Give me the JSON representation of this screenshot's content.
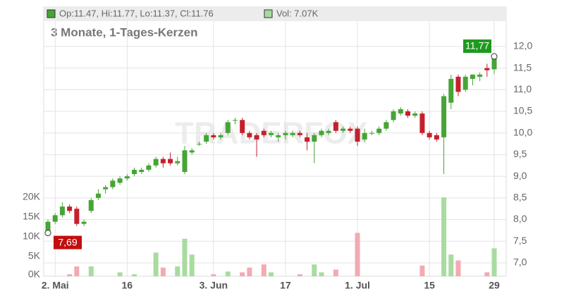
{
  "chart_data": {
    "type": "candlestick",
    "title": "3 Monate, 1-Tages-Kerzen",
    "legend": {
      "ohlc": "Op:11.47, Hi:11.77, Lo:11.37, Cl:11.76",
      "volume": "Vol: 7.07K"
    },
    "watermark": "TRADERFOX",
    "categories": [
      null,
      "2. Mai",
      null,
      null,
      null,
      null,
      null,
      null,
      null,
      null,
      null,
      "16",
      null,
      null,
      null,
      null,
      null,
      null,
      null,
      null,
      null,
      null,
      null,
      "3. Jun",
      null,
      null,
      null,
      null,
      null,
      null,
      null,
      null,
      null,
      "17",
      null,
      null,
      null,
      null,
      null,
      null,
      null,
      null,
      null,
      "1. Jul",
      null,
      null,
      null,
      null,
      null,
      null,
      null,
      null,
      null,
      "15",
      null,
      null,
      null,
      null,
      null,
      null,
      null,
      null,
      "29"
    ],
    "open": [
      7.72,
      7.95,
      8.1,
      8.3,
      8.25,
      7.9,
      8.2,
      8.5,
      8.7,
      8.75,
      8.85,
      8.95,
      9.05,
      9.1,
      9.15,
      9.25,
      9.4,
      9.4,
      9.3,
      9.1,
      9.55,
      9.75,
      9.8,
      9.95,
      9.9,
      10.0,
      10.3,
      10.3,
      10.0,
      9.95,
      10.05,
      9.95,
      9.9,
      9.95,
      9.95,
      10.0,
      9.9,
      9.8,
      9.95,
      10.0,
      10.25,
      10.05,
      10.1,
      10.1,
      9.85,
      10.0,
      10.0,
      10.1,
      10.3,
      10.45,
      10.5,
      10.4,
      10.45,
      10.0,
      9.95,
      9.9,
      10.7,
      11.3,
      11.0,
      11.25,
      11.3,
      11.5,
      11.47
    ],
    "high": [
      8.0,
      8.15,
      8.4,
      8.35,
      8.3,
      8.0,
      8.5,
      8.7,
      8.8,
      8.95,
      9.0,
      9.05,
      9.2,
      9.2,
      9.3,
      9.45,
      9.45,
      9.55,
      9.45,
      9.7,
      9.65,
      9.8,
      10.0,
      10.0,
      10.0,
      10.3,
      10.35,
      10.35,
      10.05,
      10.0,
      10.1,
      10.05,
      10.0,
      10.05,
      10.05,
      10.05,
      10.0,
      10.0,
      10.1,
      10.1,
      10.3,
      10.15,
      10.15,
      10.15,
      10.1,
      10.05,
      10.15,
      10.3,
      10.55,
      10.6,
      10.55,
      10.5,
      10.5,
      10.05,
      10.0,
      10.9,
      11.35,
      11.35,
      11.35,
      11.35,
      11.4,
      11.6,
      11.77
    ],
    "low": [
      7.69,
      7.9,
      8.05,
      8.15,
      7.85,
      7.85,
      8.15,
      8.45,
      8.6,
      8.7,
      8.8,
      8.9,
      9.0,
      9.05,
      9.1,
      9.2,
      9.2,
      9.25,
      9.25,
      9.05,
      9.5,
      9.7,
      9.75,
      9.85,
      9.85,
      9.95,
      10.2,
      9.95,
      9.85,
      9.45,
      9.9,
      9.9,
      9.8,
      9.85,
      9.9,
      9.9,
      9.6,
      9.3,
      9.9,
      9.95,
      10.0,
      10.0,
      10.0,
      9.7,
      9.8,
      9.95,
      9.95,
      10.05,
      10.25,
      10.4,
      10.35,
      10.35,
      9.95,
      9.85,
      9.8,
      9.05,
      10.55,
      10.85,
      10.95,
      11.1,
      11.2,
      11.3,
      11.37
    ],
    "close": [
      7.95,
      8.1,
      8.3,
      8.2,
      7.9,
      7.95,
      8.45,
      8.6,
      8.75,
      8.9,
      8.95,
      9.0,
      9.15,
      9.15,
      9.25,
      9.4,
      9.3,
      9.3,
      9.35,
      9.6,
      9.6,
      9.75,
      9.95,
      9.9,
      9.95,
      10.25,
      10.3,
      10.0,
      9.9,
      9.85,
      9.95,
      10.0,
      9.95,
      10.0,
      10.0,
      9.95,
      9.8,
      9.95,
      10.05,
      10.05,
      10.05,
      10.1,
      10.05,
      9.8,
      10.0,
      10.0,
      10.1,
      10.25,
      10.5,
      10.55,
      10.4,
      10.45,
      10.0,
      9.9,
      9.85,
      10.85,
      11.25,
      10.95,
      11.3,
      11.35,
      11.35,
      11.45,
      11.76
    ],
    "volume": [
      0,
      0,
      0,
      500,
      2500,
      0,
      2500,
      0,
      0,
      0,
      1000,
      0,
      500,
      0,
      0,
      6000,
      2200,
      0,
      2500,
      9500,
      5500,
      0,
      0,
      500,
      0,
      1200,
      0,
      1000,
      2200,
      0,
      3000,
      1000,
      0,
      0,
      0,
      500,
      0,
      3000,
      1000,
      0,
      1700,
      0,
      0,
      11000,
      0,
      0,
      0,
      0,
      0,
      0,
      0,
      0,
      2700,
      0,
      0,
      20000,
      5500,
      4000,
      0,
      0,
      0,
      1000,
      7070
    ],
    "ylim": [
      6.69,
      12.91
    ],
    "yticks": [
      {
        "value": 7.0,
        "label": "7,0"
      },
      {
        "value": 7.5,
        "label": "7,5"
      },
      {
        "value": 8.0,
        "label": "8,0"
      },
      {
        "value": 8.5,
        "label": "8,5"
      },
      {
        "value": 9.0,
        "label": "9,0"
      },
      {
        "value": 9.5,
        "label": "9,5"
      },
      {
        "value": 10.0,
        "label": "10,0"
      },
      {
        "value": 10.5,
        "label": "10,5"
      },
      {
        "value": 11.0,
        "label": "11,0"
      },
      {
        "value": 11.5,
        "label": "11,5"
      },
      {
        "value": 12.0,
        "label": "12,0"
      }
    ],
    "y2lim": [
      0,
      68200
    ],
    "y2ticks": [
      {
        "value": 0,
        "label": "0K"
      },
      {
        "value": 5000,
        "label": "5K"
      },
      {
        "value": 10000,
        "label": "10K"
      },
      {
        "value": 15000,
        "label": "15K"
      },
      {
        "value": 20000,
        "label": "20K"
      }
    ],
    "annotations": [
      {
        "value": 11.77,
        "label": "11,77",
        "color": "#1e9a1e"
      },
      {
        "value": 7.69,
        "label": "7,69",
        "color": "#c40d0d"
      }
    ],
    "up_color": "#46a535",
    "down_color": "#c4202c",
    "volume_up_color": "#a9dba0",
    "volume_down_color": "#f2aab3",
    "grid": true
  }
}
